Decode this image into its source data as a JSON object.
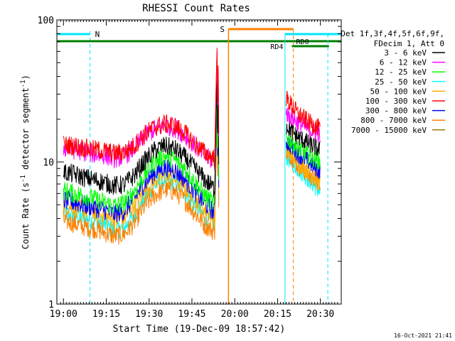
{
  "chart_data": {
    "type": "line",
    "title": "RHESSI Count Rates",
    "xlabel": "Start Time (19-Dec-09 18:57:42)",
    "ylabel_main": "Count Rate (s",
    "ylabel_sup": "-1",
    "ylabel_rest": " detector segment",
    "ylabel_sup2": "-1",
    "ylabel_end": ")",
    "y_scale": "log",
    "ylim": [
      1,
      100
    ],
    "x_range_minutes": [
      "18:57:42",
      "20:35:00"
    ],
    "x_ticks": [
      "19:00",
      "19:15",
      "19:30",
      "19:45",
      "20:00",
      "20:15",
      "20:30"
    ],
    "x_tick_minutes": [
      0,
      15,
      30,
      45,
      60,
      75,
      90
    ],
    "y_ticks": [
      "1",
      "10",
      "100"
    ],
    "grid": false,
    "legend_position": "right",
    "legend_header": [
      "Det 1f,3f,4f,5f,6f,9f,",
      "FDecim 1, Att 0"
    ],
    "series": [
      {
        "name": "3 - 6 keV",
        "color": "#000000",
        "pre": [
          8.5,
          8.2,
          7.8,
          7.5,
          7.2,
          6.8,
          6.9,
          8.0,
          10.0,
          12.0,
          13.0,
          12.4,
          10.8,
          9.0,
          7.5,
          6.4
        ],
        "post": [
          18.0,
          15.0,
          13.5,
          12.0
        ]
      },
      {
        "name": "6 - 12 keV",
        "color": "#ff00ff",
        "pre": [
          12.6,
          12.2,
          11.8,
          11.4,
          11.2,
          10.6,
          10.9,
          12.5,
          15.0,
          17.0,
          18.0,
          17.5,
          15.5,
          13.0,
          11.0,
          10.0
        ],
        "post": [
          22.0,
          19.0,
          17.0,
          15.5
        ]
      },
      {
        "name": "12 - 25 keV",
        "color": "#00ff00",
        "pre": [
          6.3,
          6.0,
          5.8,
          5.5,
          5.2,
          4.9,
          5.1,
          6.2,
          8.0,
          10.0,
          11.0,
          10.4,
          9.0,
          7.2,
          5.8,
          5.0
        ],
        "post": [
          15.0,
          12.5,
          11.0,
          10.0
        ]
      },
      {
        "name": "25 - 50 keV",
        "color": "#00ffff",
        "pre": [
          4.4,
          4.2,
          4.0,
          3.9,
          3.6,
          3.3,
          3.4,
          4.2,
          5.5,
          6.8,
          7.5,
          7.2,
          6.2,
          5.0,
          4.1,
          3.6
        ],
        "post": [
          11.0,
          9.0,
          7.5,
          6.0
        ]
      },
      {
        "name": "50 - 100 keV",
        "color": "#ffaa00",
        "pre": [
          5.0,
          4.8,
          4.6,
          4.4,
          4.2,
          3.9,
          4.0,
          4.9,
          6.2,
          7.4,
          8.0,
          7.7,
          6.7,
          5.5,
          4.6,
          4.0
        ],
        "post": [
          12.0,
          10.0,
          8.5,
          7.0
        ]
      },
      {
        "name": "100 - 300 keV",
        "color": "#ff0000",
        "pre": [
          13.2,
          13.0,
          12.6,
          12.2,
          12.0,
          11.5,
          11.7,
          13.0,
          15.5,
          17.5,
          18.5,
          18.0,
          16.0,
          13.5,
          11.6,
          10.6
        ],
        "post": [
          28.0,
          22.0,
          19.0,
          17.0
        ]
      },
      {
        "name": "300 - 800 keV",
        "color": "#0000ff",
        "pre": [
          5.4,
          5.2,
          5.0,
          4.8,
          4.6,
          4.3,
          4.5,
          5.5,
          7.0,
          8.4,
          9.2,
          8.8,
          7.6,
          6.2,
          5.1,
          4.4
        ],
        "post": [
          14.0,
          11.5,
          10.0,
          8.5
        ]
      },
      {
        "name": "800 - 7000 keV",
        "color": "#ff8000",
        "pre": [
          3.9,
          3.7,
          3.5,
          3.4,
          3.2,
          3.0,
          3.1,
          3.7,
          4.8,
          5.8,
          6.4,
          6.2,
          5.4,
          4.4,
          3.6,
          3.2
        ],
        "post": [
          12.0,
          9.5,
          8.0,
          7.0
        ]
      },
      {
        "name": "7000 - 15000 keV",
        "color": "#a07800",
        "pre": [],
        "post": []
      }
    ],
    "pre_window_minutes": [
      0,
      53
    ],
    "post_window_minutes": [
      78,
      90
    ],
    "annotations": [
      {
        "text": "N",
        "color": "#00ccff"
      },
      {
        "text": "S",
        "color": "#ff8000"
      },
      {
        "text": "RD0",
        "color": "#007f00"
      },
      {
        "text": "RD4",
        "color": "#007f00"
      }
    ],
    "timestamp": "16-Oct-2021 21:41"
  }
}
